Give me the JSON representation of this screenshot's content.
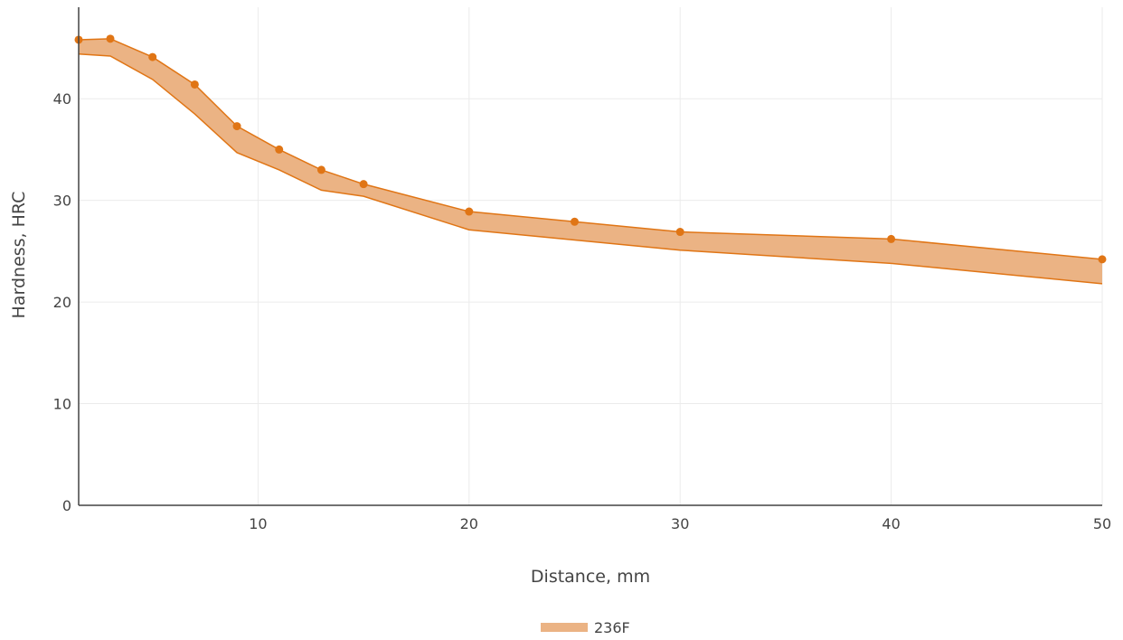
{
  "chart_data": {
    "type": "area",
    "xlabel": "Distance, mm",
    "ylabel": "Hardness, HRC",
    "xlim": [
      1.5,
      50
    ],
    "ylim": [
      0,
      49
    ],
    "x_ticks": [
      10,
      20,
      30,
      40,
      50
    ],
    "y_ticks": [
      0,
      10,
      20,
      30,
      40
    ],
    "grid": true,
    "legend_position": "bottom-center",
    "series": [
      {
        "name": "236F",
        "band_color": "#ebb384",
        "line_color": "#e07515",
        "x": [
          1.5,
          3,
          5,
          7,
          9,
          11,
          13,
          15,
          20,
          25,
          30,
          40,
          50
        ],
        "upper": [
          45.8,
          45.9,
          44.1,
          41.4,
          37.3,
          35.0,
          33.0,
          31.6,
          28.9,
          27.9,
          26.9,
          26.2,
          24.2
        ],
        "lower": [
          44.4,
          44.2,
          41.9,
          38.5,
          34.7,
          33.0,
          31.0,
          30.4,
          27.1,
          26.1,
          25.1,
          23.8,
          21.8
        ]
      }
    ]
  }
}
